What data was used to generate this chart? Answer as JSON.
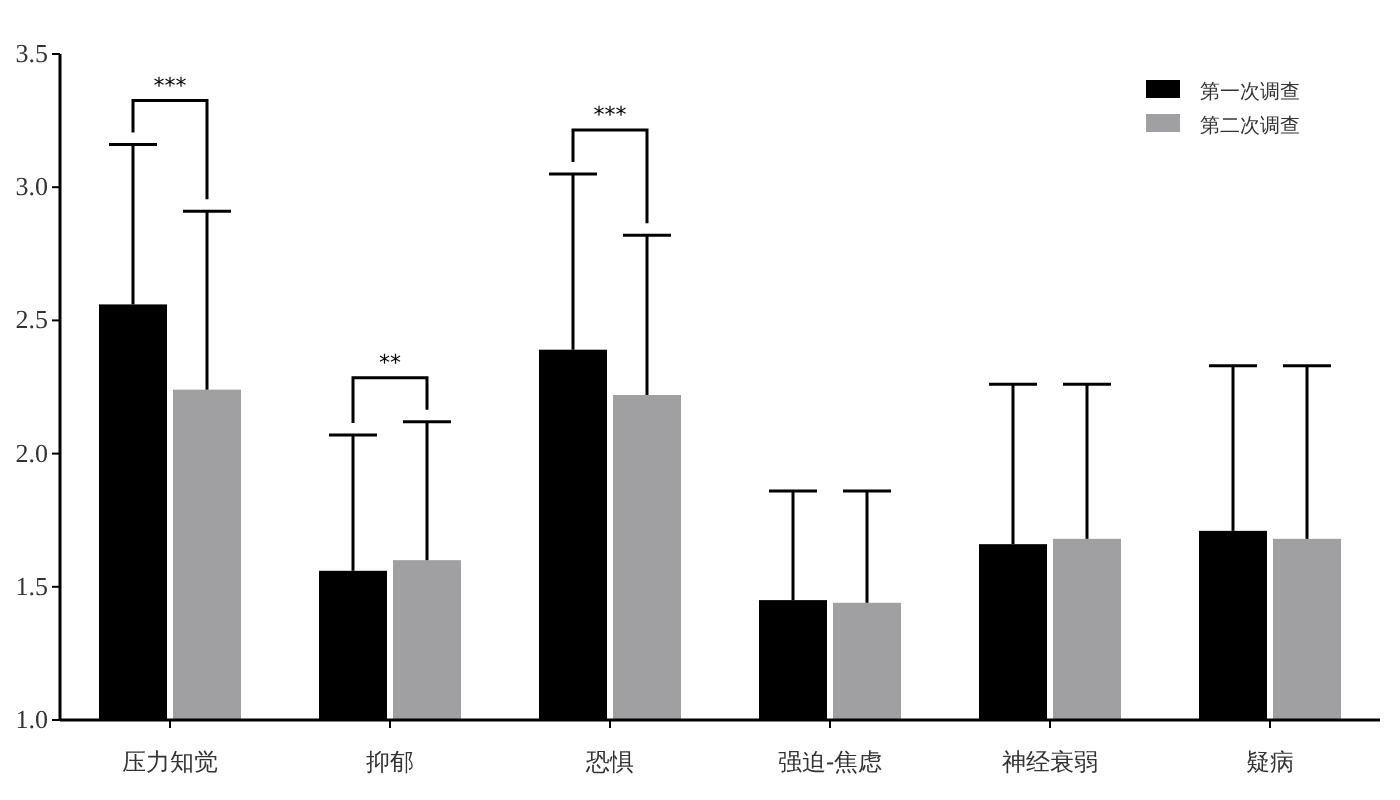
{
  "chart_data": {
    "type": "bar",
    "categories": [
      "压力知觉",
      "抑郁",
      "恐惧",
      "强迫-焦虑",
      "神经衰弱",
      "疑病"
    ],
    "series": [
      {
        "name": "第一次调查",
        "color": "#000000",
        "values": [
          2.56,
          1.56,
          2.39,
          1.45,
          1.66,
          1.71
        ],
        "errors": [
          [
            2.56,
            3.16
          ],
          [
            1.56,
            2.07
          ],
          [
            2.39,
            3.05
          ],
          [
            1.45,
            1.86
          ],
          [
            1.66,
            2.26
          ],
          [
            1.71,
            2.33
          ]
        ]
      },
      {
        "name": "第二次调查",
        "color": "#a0a0a2",
        "values": [
          2.24,
          1.6,
          2.22,
          1.44,
          1.68,
          1.68
        ],
        "errors": [
          [
            2.24,
            2.91
          ],
          [
            1.6,
            2.12
          ],
          [
            2.22,
            2.82
          ],
          [
            1.44,
            1.86
          ],
          [
            1.68,
            2.26
          ],
          [
            1.68,
            2.33
          ]
        ]
      }
    ],
    "ylim": [
      1.0,
      3.5
    ],
    "yticks": [
      {
        "value": 1.0,
        "label": "1.0"
      },
      {
        "value": 1.5,
        "label": "1.5"
      },
      {
        "value": 2.0,
        "label": "2.0"
      },
      {
        "value": 2.5,
        "label": "2.5"
      },
      {
        "value": 3.0,
        "label": "3.0"
      },
      {
        "value": 3.5,
        "label": "3.5"
      }
    ],
    "annotations": [
      "***",
      "**",
      "***"
    ],
    "legend": "top right",
    "grid": false
  }
}
